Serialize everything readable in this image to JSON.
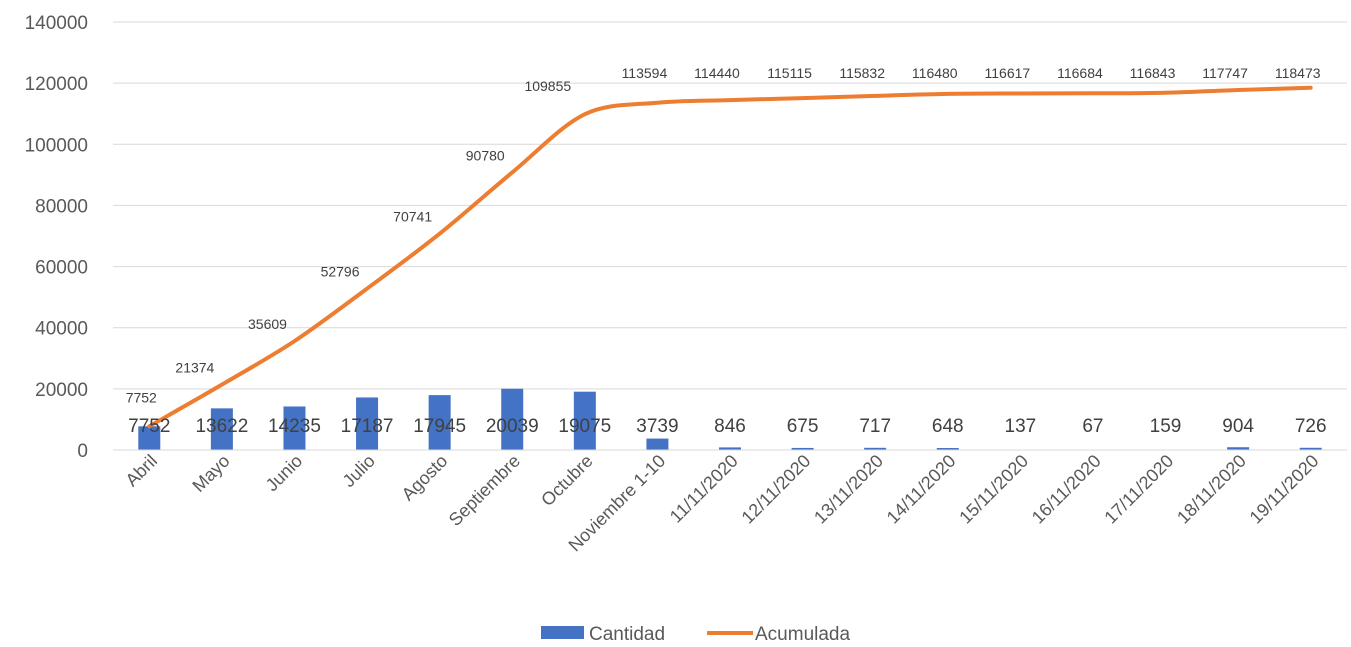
{
  "chart_data": {
    "type": "bar+line",
    "title": "",
    "xlabel": "",
    "ylabel": "",
    "ylim": [
      0,
      140000
    ],
    "yticks": [
      0,
      20000,
      40000,
      60000,
      80000,
      100000,
      120000,
      140000
    ],
    "grid": true,
    "legend_position": "bottom",
    "categories": [
      "Abril",
      "Mayo",
      "Junio",
      "Julio",
      "Agosto",
      "Septiembre",
      "Octubre",
      "Noviembre 1-10",
      "11/11/2020",
      "12/11/2020",
      "13/11/2020",
      "14/11/2020",
      "15/11/2020",
      "16/11/2020",
      "17/11/2020",
      "18/11/2020",
      "19/11/2020"
    ],
    "series": [
      {
        "name": "Cantidad",
        "kind": "bar",
        "color": "#4472C4",
        "values": [
          7752,
          13622,
          14235,
          17187,
          17945,
          20039,
          19075,
          3739,
          846,
          675,
          717,
          648,
          137,
          67,
          159,
          904,
          726
        ]
      },
      {
        "name": "Acumulada",
        "kind": "line",
        "color": "#ED7D31",
        "values": [
          7752,
          21374,
          35609,
          52796,
          70741,
          90780,
          109855,
          113594,
          114440,
          115115,
          115832,
          116480,
          116617,
          116684,
          116843,
          117747,
          118473
        ]
      }
    ]
  }
}
